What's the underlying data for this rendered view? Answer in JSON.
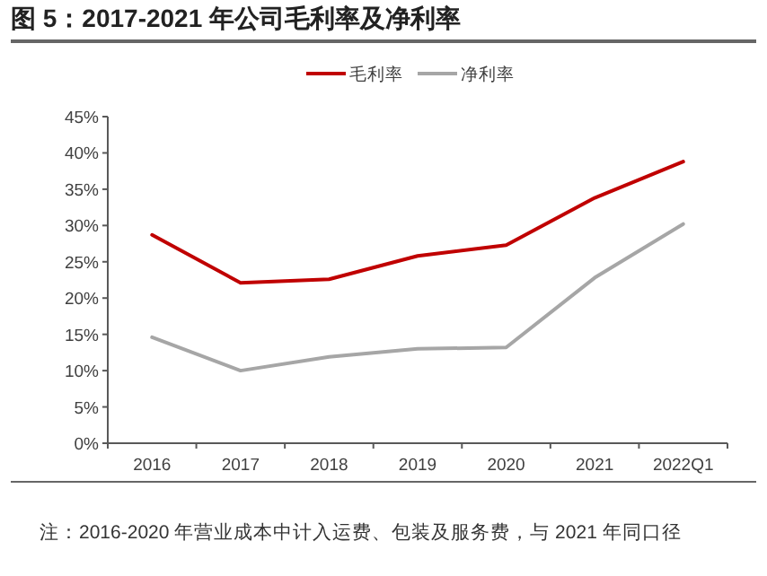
{
  "chart_data": {
    "type": "line",
    "title": "图 5：2017-2021 年公司毛利率及净利率",
    "categories": [
      "2016",
      "2017",
      "2018",
      "2019",
      "2020",
      "2021",
      "2022Q1"
    ],
    "series": [
      {
        "name": "毛利率",
        "color": "#c00000",
        "values": [
          28.7,
          22.1,
          22.6,
          25.8,
          27.3,
          33.8,
          38.8
        ]
      },
      {
        "name": "净利率",
        "color": "#a6a6a6",
        "values": [
          14.6,
          10.0,
          11.9,
          13.0,
          13.2,
          22.8,
          30.2
        ]
      }
    ],
    "ylim": [
      0,
      45
    ],
    "yticks": [
      {
        "value": 0,
        "label": "0%"
      },
      {
        "value": 5,
        "label": "5%"
      },
      {
        "value": 10,
        "label": "10%"
      },
      {
        "value": 15,
        "label": "15%"
      },
      {
        "value": 20,
        "label": "20%"
      },
      {
        "value": 25,
        "label": "25%"
      },
      {
        "value": 30,
        "label": "30%"
      },
      {
        "value": 35,
        "label": "35%"
      },
      {
        "value": 40,
        "label": "40%"
      },
      {
        "value": 45,
        "label": "45%"
      }
    ],
    "legend": "top",
    "grid": false,
    "marker": "none",
    "line_style": "solid",
    "annotations": [
      "注：2016-2020 年营业成本中计入运费、包装及服务费，与 2021 年同口径"
    ]
  }
}
